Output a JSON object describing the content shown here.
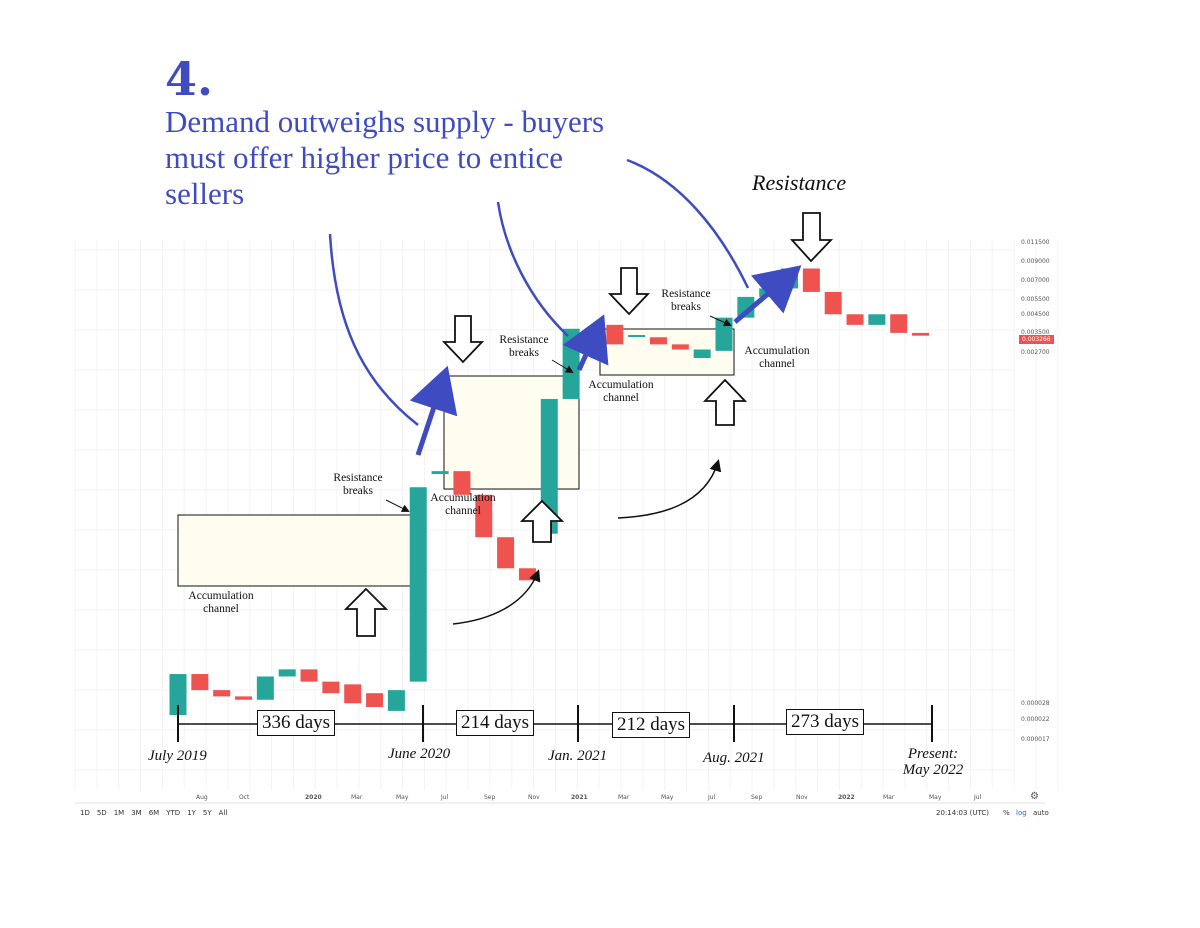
{
  "heading": {
    "number": "4.",
    "text": "Demand outweighs supply - buyers must offer higher price to entice sellers"
  },
  "resistance_title": "Resistance",
  "annotations": {
    "accumulation_1": "Accumulation channel",
    "accumulation_2": "Accumulation channel",
    "accumulation_3": "Accumulation channel",
    "accumulation_4": "Accumulation channel",
    "resistance_breaks_1": "Resistance breaks",
    "resistance_breaks_2": "Resistance breaks",
    "resistance_breaks_3": "Resistance breaks"
  },
  "timeline": {
    "dates": [
      "July 2019",
      "June 2020",
      "Jan. 2021",
      "Aug. 2021",
      "Present: May 2022"
    ],
    "durations": [
      "336 days",
      "214 days",
      "212 days",
      "273 days"
    ]
  },
  "x_axis_ticks": [
    "Aug",
    "Oct",
    "2020",
    "Mar",
    "May",
    "Jul",
    "Sep",
    "Nov",
    "2021",
    "Mar",
    "May",
    "Jul",
    "Sep",
    "Nov",
    "2022",
    "Mar",
    "May",
    "Jul"
  ],
  "price_axis_ticks": [
    "0.011500",
    "0.009000",
    "0.007000",
    "0.005500",
    "0.004500",
    "0.003500",
    "0.003266",
    "0.002700",
    "0.000028",
    "0.000022",
    "0.000017"
  ],
  "current_price": "0.003266",
  "toolbar": {
    "ranges": [
      "1D",
      "5D",
      "1M",
      "3M",
      "6M",
      "YTD",
      "1Y",
      "5Y",
      "All"
    ],
    "time": "20:14:03 (UTC)",
    "percent": "%",
    "log": "log",
    "auto": "auto"
  },
  "colors": {
    "up": "#26a69a",
    "down": "#ef5350",
    "accent": "#3f4bc1",
    "channel_fill": "#fffdf0"
  },
  "chart_data": {
    "type": "candlestick",
    "interval": "monthly",
    "scale": "log",
    "x": [
      "2019-07",
      "2019-08",
      "2019-09",
      "2019-10",
      "2019-11",
      "2019-12",
      "2020-01",
      "2020-02",
      "2020-03",
      "2020-04",
      "2020-05",
      "2020-06",
      "2020-07",
      "2020-08",
      "2020-09",
      "2020-10",
      "2020-11",
      "2020-12",
      "2021-01",
      "2021-02",
      "2021-03",
      "2021-04",
      "2021-05",
      "2021-06",
      "2021-07",
      "2021-08",
      "2021-09",
      "2021-10",
      "2021-11",
      "2021-12",
      "2022-01",
      "2022-02",
      "2022-03",
      "2022-04",
      "2022-05"
    ],
    "open": [
      1.7e-05,
      3e-05,
      2.4e-05,
      2.2e-05,
      2.1e-05,
      2.9e-05,
      3.2e-05,
      2.7e-05,
      2.6e-05,
      2.3e-05,
      1.8e-05,
      2.7e-05,
      0.00048,
      0.0005,
      0.00036,
      0.0002,
      0.00013,
      0.00021,
      0.00136,
      0.0036,
      0.0038,
      0.0033,
      0.0032,
      0.0029,
      0.0024,
      0.00265,
      0.0042,
      0.0056,
      0.0063,
      0.0083,
      0.006,
      0.0044,
      0.0038,
      0.0044,
      0.0034
    ],
    "close": [
      3e-05,
      2.4e-05,
      2.2e-05,
      2.1e-05,
      2.9e-05,
      3.2e-05,
      2.7e-05,
      2.3e-05,
      2e-05,
      1.9e-05,
      2.4e-05,
      0.0004,
      0.0005,
      0.00036,
      0.0002,
      0.00013,
      0.00011,
      0.00136,
      0.0036,
      0.0027,
      0.0029,
      0.0033,
      0.0029,
      0.0027,
      0.0027,
      0.0042,
      0.0056,
      0.0063,
      0.0083,
      0.006,
      0.0044,
      0.0038,
      0.0044,
      0.0034,
      0.00327
    ]
  }
}
